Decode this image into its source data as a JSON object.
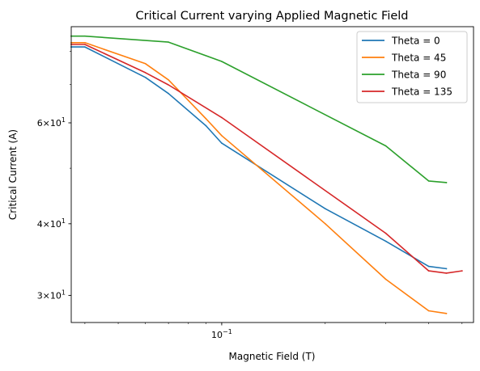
{
  "chart_data": {
    "type": "line",
    "title": "Critical Current varying Applied Magnetic Field",
    "xlabel": "Magnetic Field (T)",
    "ylabel": "Critical Current (A)",
    "x_scale": "log",
    "y_scale": "log",
    "xlim": [
      0.0365,
      0.54
    ],
    "ylim": [
      26.9,
      88.3
    ],
    "x_ticks": [
      {
        "value": 0.1,
        "base": "10",
        "exp": "−1"
      }
    ],
    "y_ticks": [
      {
        "value": 30,
        "mant": "3",
        "base": "10",
        "exp": "1"
      },
      {
        "value": 40,
        "mant": "4",
        "base": "10",
        "exp": "1"
      },
      {
        "value": 60,
        "mant": "6",
        "base": "10",
        "exp": "1"
      }
    ],
    "y_minor_ticks": [
      50,
      70,
      80
    ],
    "legend_position": "top-right",
    "grid": false,
    "series": [
      {
        "name": "Theta = 0",
        "color": "#1f77b4",
        "x": [
          0.0365,
          0.04,
          0.06,
          0.07,
          0.09,
          0.1,
          0.2,
          0.3,
          0.4,
          0.45
        ],
        "y": [
          81.4,
          81.4,
          72.0,
          67.5,
          59.3,
          55.3,
          42.5,
          37.3,
          33.7,
          33.4
        ]
      },
      {
        "name": "Theta = 45",
        "color": "#ff7f0e",
        "x": [
          0.0365,
          0.04,
          0.06,
          0.07,
          0.09,
          0.1,
          0.2,
          0.3,
          0.4,
          0.45
        ],
        "y": [
          82.8,
          82.8,
          76.1,
          71.3,
          61.0,
          57.0,
          40.0,
          32.0,
          28.2,
          27.9
        ]
      },
      {
        "name": "Theta = 90",
        "color": "#2ca02c",
        "x": [
          0.0365,
          0.04,
          0.07,
          0.1,
          0.3,
          0.4,
          0.45
        ],
        "y": [
          85.0,
          85.0,
          83.0,
          76.8,
          54.7,
          47.5,
          47.2
        ]
      },
      {
        "name": "Theta = 135",
        "color": "#d62728",
        "x": [
          0.0365,
          0.04,
          0.06,
          0.07,
          0.1,
          0.3,
          0.4,
          0.45,
          0.5
        ],
        "y": [
          82.2,
          82.2,
          73.4,
          69.9,
          61.3,
          38.5,
          33.1,
          32.8,
          33.1
        ]
      }
    ]
  }
}
